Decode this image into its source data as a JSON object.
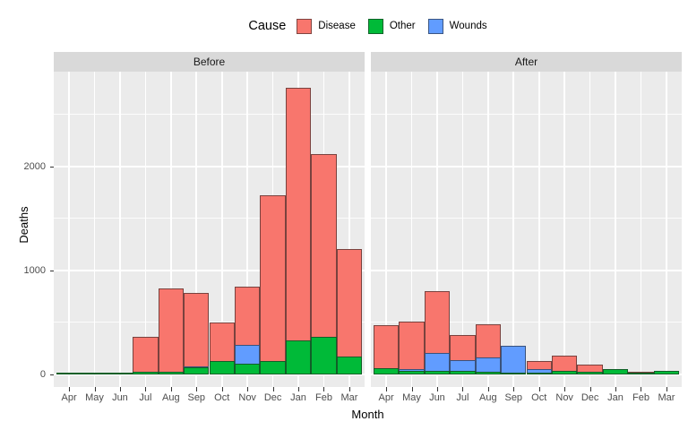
{
  "legend": {
    "title": "Cause",
    "entries": [
      {
        "label": "Disease",
        "color": "#F8766D"
      },
      {
        "label": "Other",
        "color": "#00BA38"
      },
      {
        "label": "Wounds",
        "color": "#619CFF"
      }
    ]
  },
  "chart_data": {
    "type": "bar",
    "position": "identity-overlap",
    "title": "",
    "xlabel": "Month",
    "ylabel": "Deaths",
    "categories": [
      "Apr",
      "May",
      "Jun",
      "Jul",
      "Aug",
      "Sep",
      "Oct",
      "Nov",
      "Dec",
      "Jan",
      "Feb",
      "Mar"
    ],
    "yticks": [
      0,
      1000,
      2000
    ],
    "yminor": [
      500,
      1500,
      2500
    ],
    "ylim": [
      -121,
      2914
    ],
    "grid": true,
    "legend_position": "top",
    "panel_bg": "#EBEBEB",
    "strip_bg": "#D9D9D9",
    "series_colors": {
      "Disease": "#F8766D",
      "Wounds": "#619CFF",
      "Other": "#00BA38"
    },
    "draw_order_note": "series drawn back-to-front in array order, all bars anchored at y=0",
    "facets": [
      {
        "label": "Before",
        "series": [
          {
            "name": "Disease",
            "values": [
              1,
              12,
              11,
              359,
              828,
              788,
              503,
              844,
              1725,
              2761,
              2120,
              1205
            ]
          },
          {
            "name": "Wounds",
            "values": [
              0,
              0,
              0,
              0,
              1,
              81,
              132,
              287,
              114,
              83,
              42,
              32
            ]
          },
          {
            "name": "Other",
            "values": [
              5,
              9,
              6,
              23,
              30,
              70,
              128,
              106,
              131,
              324,
              361,
              172
            ]
          }
        ]
      },
      {
        "label": "After",
        "series": [
          {
            "name": "Disease",
            "values": [
              477,
              508,
              802,
              382,
              483,
              189,
              128,
              178,
              91,
              42,
              24,
              15
            ]
          },
          {
            "name": "Wounds",
            "values": [
              48,
              49,
              209,
              134,
              164,
              276,
              53,
              33,
              18,
              2,
              0,
              0
            ]
          },
          {
            "name": "Other",
            "values": [
              57,
              37,
              31,
              33,
              25,
              20,
              18,
              32,
              28,
              48,
              19,
              35
            ]
          }
        ]
      }
    ]
  }
}
